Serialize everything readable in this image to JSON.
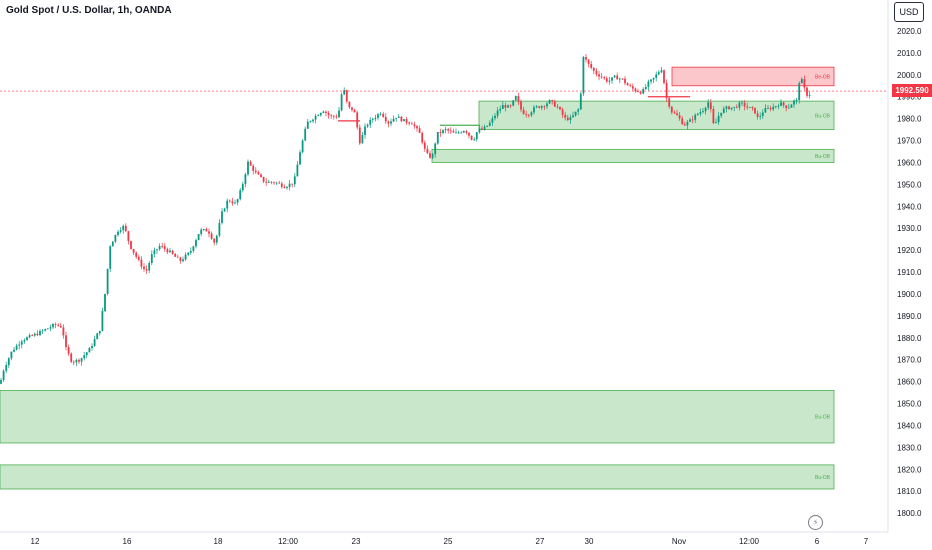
{
  "header": {
    "title": "Gold Spot / U.S. Dollar, 1h, OANDA",
    "currency": "USD"
  },
  "last_price": "1992.590",
  "colors": {
    "up": "#089981",
    "down": "#f23645",
    "demand": "#4caf50",
    "supply": "#f23645",
    "axis_text": "#131722"
  },
  "icons": {
    "replay": "lightning-icon"
  },
  "chart_data": {
    "type": "candlestick",
    "title": "Gold Spot / U.S. Dollar, 1h, OANDA",
    "ylim": [
      1795,
      2027
    ],
    "y_ticks": [
      2020,
      2010,
      2000,
      1990,
      1980,
      1970,
      1960,
      1950,
      1940,
      1930,
      1920,
      1910,
      1900,
      1890,
      1880,
      1870,
      1860,
      1850,
      1840,
      1830,
      1820,
      1810,
      1800
    ],
    "x_ticks": [
      "12",
      "16",
      "18",
      "12:00",
      "23",
      "25",
      "27",
      "30",
      "Nov",
      "12:00",
      "6",
      "7"
    ],
    "last_price": 1992.59,
    "path": [
      [
        0,
        1859
      ],
      [
        4,
        1866
      ],
      [
        12,
        1874
      ],
      [
        22,
        1879
      ],
      [
        38,
        1882
      ],
      [
        55,
        1886
      ],
      [
        62,
        1885
      ],
      [
        66,
        1875
      ],
      [
        72,
        1869
      ],
      [
        80,
        1870
      ],
      [
        90,
        1875
      ],
      [
        100,
        1884
      ],
      [
        105,
        1900
      ],
      [
        110,
        1922
      ],
      [
        118,
        1929
      ],
      [
        124,
        1931
      ],
      [
        130,
        1922
      ],
      [
        140,
        1914
      ],
      [
        146,
        1910
      ],
      [
        152,
        1918
      ],
      [
        160,
        1922
      ],
      [
        170,
        1919
      ],
      [
        180,
        1915
      ],
      [
        190,
        1919
      ],
      [
        200,
        1929
      ],
      [
        208,
        1929
      ],
      [
        215,
        1923
      ],
      [
        222,
        1937
      ],
      [
        228,
        1943
      ],
      [
        236,
        1941
      ],
      [
        242,
        1949
      ],
      [
        248,
        1960
      ],
      [
        256,
        1955
      ],
      [
        265,
        1951
      ],
      [
        275,
        1951
      ],
      [
        285,
        1949
      ],
      [
        294,
        1951
      ],
      [
        300,
        1965
      ],
      [
        307,
        1978
      ],
      [
        315,
        1981
      ],
      [
        323,
        1984
      ],
      [
        330,
        1981
      ],
      [
        338,
        1981
      ],
      [
        343,
        1995
      ],
      [
        348,
        1985
      ],
      [
        354,
        1984
      ],
      [
        360,
        1969
      ],
      [
        366,
        1977
      ],
      [
        373,
        1980
      ],
      [
        381,
        1983
      ],
      [
        388,
        1978
      ],
      [
        396,
        1981
      ],
      [
        404,
        1979
      ],
      [
        412,
        1978
      ],
      [
        420,
        1973
      ],
      [
        426,
        1964
      ],
      [
        432,
        1962
      ],
      [
        437,
        1973
      ],
      [
        446,
        1975
      ],
      [
        455,
        1973
      ],
      [
        465,
        1975
      ],
      [
        473,
        1970
      ],
      [
        478,
        1975
      ],
      [
        483,
        1975
      ],
      [
        490,
        1978
      ],
      [
        497,
        1983
      ],
      [
        503,
        1986
      ],
      [
        510,
        1985
      ],
      [
        516,
        1990
      ],
      [
        522,
        1983
      ],
      [
        528,
        1982
      ],
      [
        535,
        1985
      ],
      [
        543,
        1986
      ],
      [
        550,
        1988
      ],
      [
        558,
        1985
      ],
      [
        565,
        1980
      ],
      [
        571,
        1980
      ],
      [
        576,
        1983
      ],
      [
        580,
        1985
      ],
      [
        583,
        2009
      ],
      [
        588,
        2005
      ],
      [
        595,
        2001
      ],
      [
        602,
        1999
      ],
      [
        608,
        1997
      ],
      [
        615,
        1999
      ],
      [
        622,
        1998
      ],
      [
        628,
        1995
      ],
      [
        635,
        1993
      ],
      [
        642,
        1992
      ],
      [
        648,
        1996
      ],
      [
        653,
        1998
      ],
      [
        658,
        2001
      ],
      [
        662,
        2003
      ],
      [
        666,
        1990
      ],
      [
        672,
        1983
      ],
      [
        678,
        1981
      ],
      [
        684,
        1977
      ],
      [
        690,
        1979
      ],
      [
        697,
        1982
      ],
      [
        703,
        1984
      ],
      [
        709,
        1988
      ],
      [
        714,
        1976
      ],
      [
        720,
        1983
      ],
      [
        727,
        1985
      ],
      [
        734,
        1985
      ],
      [
        741,
        1987
      ],
      [
        748,
        1985
      ],
      [
        754,
        1984
      ],
      [
        758,
        1980
      ],
      [
        764,
        1984
      ],
      [
        772,
        1985
      ],
      [
        780,
        1987
      ],
      [
        788,
        1985
      ],
      [
        794,
        1988
      ],
      [
        797,
        1988
      ],
      [
        800,
        2000
      ],
      [
        804,
        1994
      ],
      [
        808,
        1990
      ],
      [
        812,
        1993
      ]
    ],
    "zones": [
      {
        "kind": "supply",
        "label": "Be-OB",
        "y0": 1995,
        "y1": 2003.5,
        "x0": 672,
        "x1": 834
      },
      {
        "kind": "demand",
        "label": "Bu-OB",
        "y0": 1975,
        "y1": 1988,
        "x0": 479,
        "x1": 834
      },
      {
        "kind": "demand",
        "label": "Bu-OB",
        "y0": 1960,
        "y1": 1966,
        "x0": 432,
        "x1": 834
      },
      {
        "kind": "demand",
        "label": "Bu-OB",
        "y0": 1832,
        "y1": 1856,
        "x0": 0,
        "x1": 834
      },
      {
        "kind": "demand",
        "label": "Bu-OB",
        "y0": 1811,
        "y1": 1822,
        "x0": 0,
        "x1": 834
      }
    ],
    "marker_lines": [
      {
        "kind": "demand",
        "y": 1977,
        "x0": 440,
        "x1": 480
      },
      {
        "kind": "supply",
        "y": 1990,
        "x0": 648,
        "x1": 690
      },
      {
        "kind": "supply",
        "y": 1979,
        "x0": 338,
        "x1": 360
      }
    ]
  }
}
